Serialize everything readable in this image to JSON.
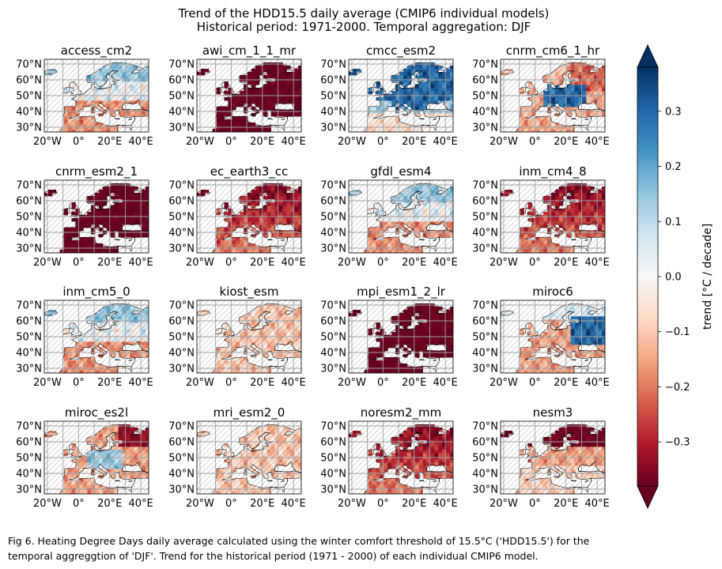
{
  "figure": {
    "title_line1": "Trend of the HDD15.5 daily average (CMIP6 individual models)",
    "title_line2": "Historical period: 1971-2000. Temporal aggregation: DJF",
    "caption_line1": "Fig 6. Heating Degree Days daily average calculated using the winter comfort threshold of 15.5°C ('HDD15.5') for the",
    "caption_line2": "temporal aggreggtion of 'DJF'. Trend for the historical period (1971 - 2000) of each individual CMIP6 model."
  },
  "chart_data": {
    "type": "heatmap",
    "layout": "4x4 small multiples, maps of Europe",
    "panels": [
      {
        "name": "access_cm2",
        "pattern": "mixed_north_blue"
      },
      {
        "name": "awi_cm_1_1_mr",
        "pattern": "strong_red"
      },
      {
        "name": "cmcc_esm2",
        "pattern": "strong_blue"
      },
      {
        "name": "cnrm_cm6_1_hr",
        "pattern": "blue_center_red_ne"
      },
      {
        "name": "cnrm_esm2_1",
        "pattern": "strong_red"
      },
      {
        "name": "ec_earth3_cc",
        "pattern": "moderate_red"
      },
      {
        "name": "gfdl_esm4",
        "pattern": "mixed_north_blue"
      },
      {
        "name": "inm_cm4_8",
        "pattern": "moderate_red"
      },
      {
        "name": "inm_cm5_0",
        "pattern": "mixed_north_blue"
      },
      {
        "name": "kiost_esm",
        "pattern": "light_red"
      },
      {
        "name": "mpi_esm1_2_lr",
        "pattern": "strong_red"
      },
      {
        "name": "miroc6",
        "pattern": "blue_east"
      },
      {
        "name": "miroc_es2l",
        "pattern": "mixed_center_blue"
      },
      {
        "name": "mri_esm2_0",
        "pattern": "light_red"
      },
      {
        "name": "noresm2_mm",
        "pattern": "moderate_red"
      },
      {
        "name": "nesm3",
        "pattern": "strong_red_north"
      }
    ],
    "x_ticks": [
      "20°W",
      "0°",
      "20°E",
      "40°E"
    ],
    "y_ticks": [
      "70°N",
      "60°N",
      "50°N",
      "40°N",
      "30°N"
    ],
    "xlim": [
      -22,
      45
    ],
    "ylim": [
      27,
      73
    ],
    "colorbar": {
      "label": "trend [°C / decade]",
      "ticks": [
        "0.3",
        "0.2",
        "0.1",
        "0.0",
        "−0.1",
        "−0.2",
        "−0.3"
      ],
      "tick_values": [
        0.3,
        0.2,
        0.1,
        0.0,
        -0.1,
        -0.2,
        -0.3
      ],
      "range": [
        -0.38,
        0.38
      ],
      "extend": "both",
      "colormap": "RdBu",
      "colors": [
        "#67001f",
        "#b2182b",
        "#d6604d",
        "#f4a582",
        "#fddbc7",
        "#f7f7f7",
        "#d1e5f0",
        "#92c5de",
        "#4393c3",
        "#2166ac",
        "#053061"
      ]
    },
    "hatching": "diagonal hatching marks non-significant trends",
    "grid": true
  }
}
